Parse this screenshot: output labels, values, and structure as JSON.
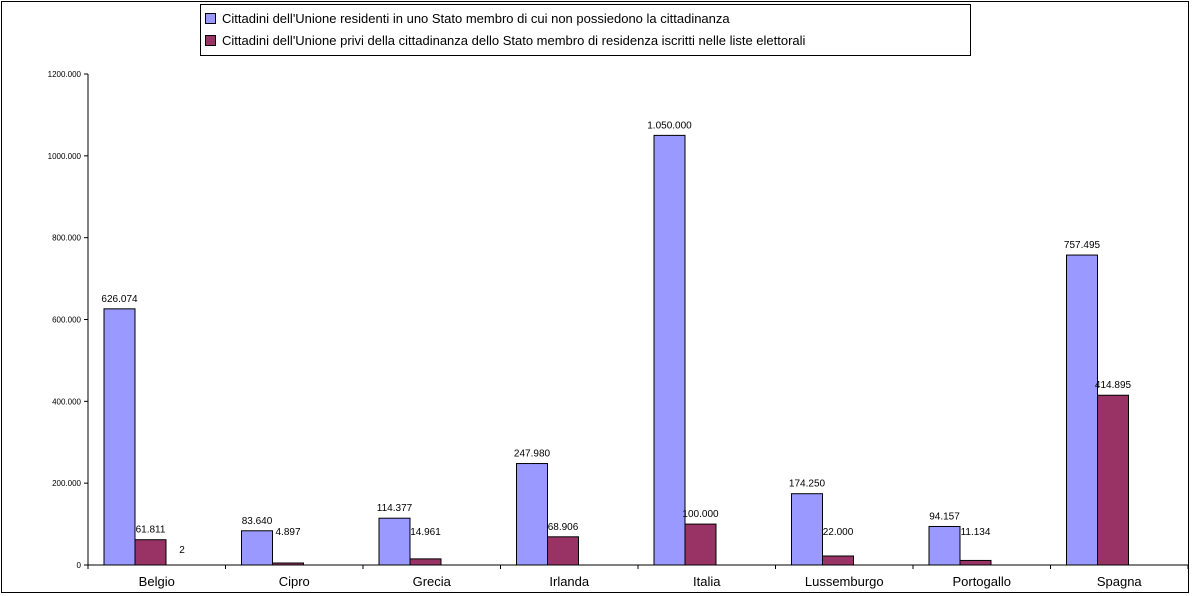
{
  "chart_data": {
    "type": "bar",
    "categories": [
      "Belgio",
      "Cipro",
      "Grecia",
      "Irlanda",
      "Italia",
      "Lussemburgo",
      "Portogallo",
      "Spagna"
    ],
    "series": [
      {
        "name": "Cittadini dell'Unione residenti in uno Stato membro di cui non possiedono la cittadinanza",
        "color": "#9999ff",
        "values": [
          626074,
          83640,
          114377,
          247980,
          1050000,
          174250,
          94157,
          757495
        ],
        "labels": [
          "626.074",
          "83.640",
          "114.377",
          "247.980",
          "1.050.000",
          "174.250",
          "94.157",
          "757.495"
        ]
      },
      {
        "name": "Cittadini dell'Unione privi della cittadinanza dello Stato membro di residenza iscritti nelle liste elettorali",
        "color": "#993366",
        "values": [
          61811,
          4897,
          14961,
          68906,
          100000,
          22000,
          11134,
          414895
        ],
        "labels": [
          "61.811",
          "4.897",
          "14.961",
          "68.906",
          "100.000",
          "22.000",
          "11.134",
          "414.895"
        ]
      }
    ],
    "annotations": [
      {
        "text": "2",
        "category": "Belgio"
      }
    ],
    "ylim": [
      0,
      1200000
    ],
    "yticks": [
      0,
      200000,
      400000,
      600000,
      800000,
      1000000,
      1200000
    ],
    "ytick_labels": [
      "0",
      "200.000",
      "400.000",
      "600.000",
      "800.000",
      "1000.000",
      "1200.000"
    ],
    "grid": false,
    "legend_position": "top-center"
  }
}
